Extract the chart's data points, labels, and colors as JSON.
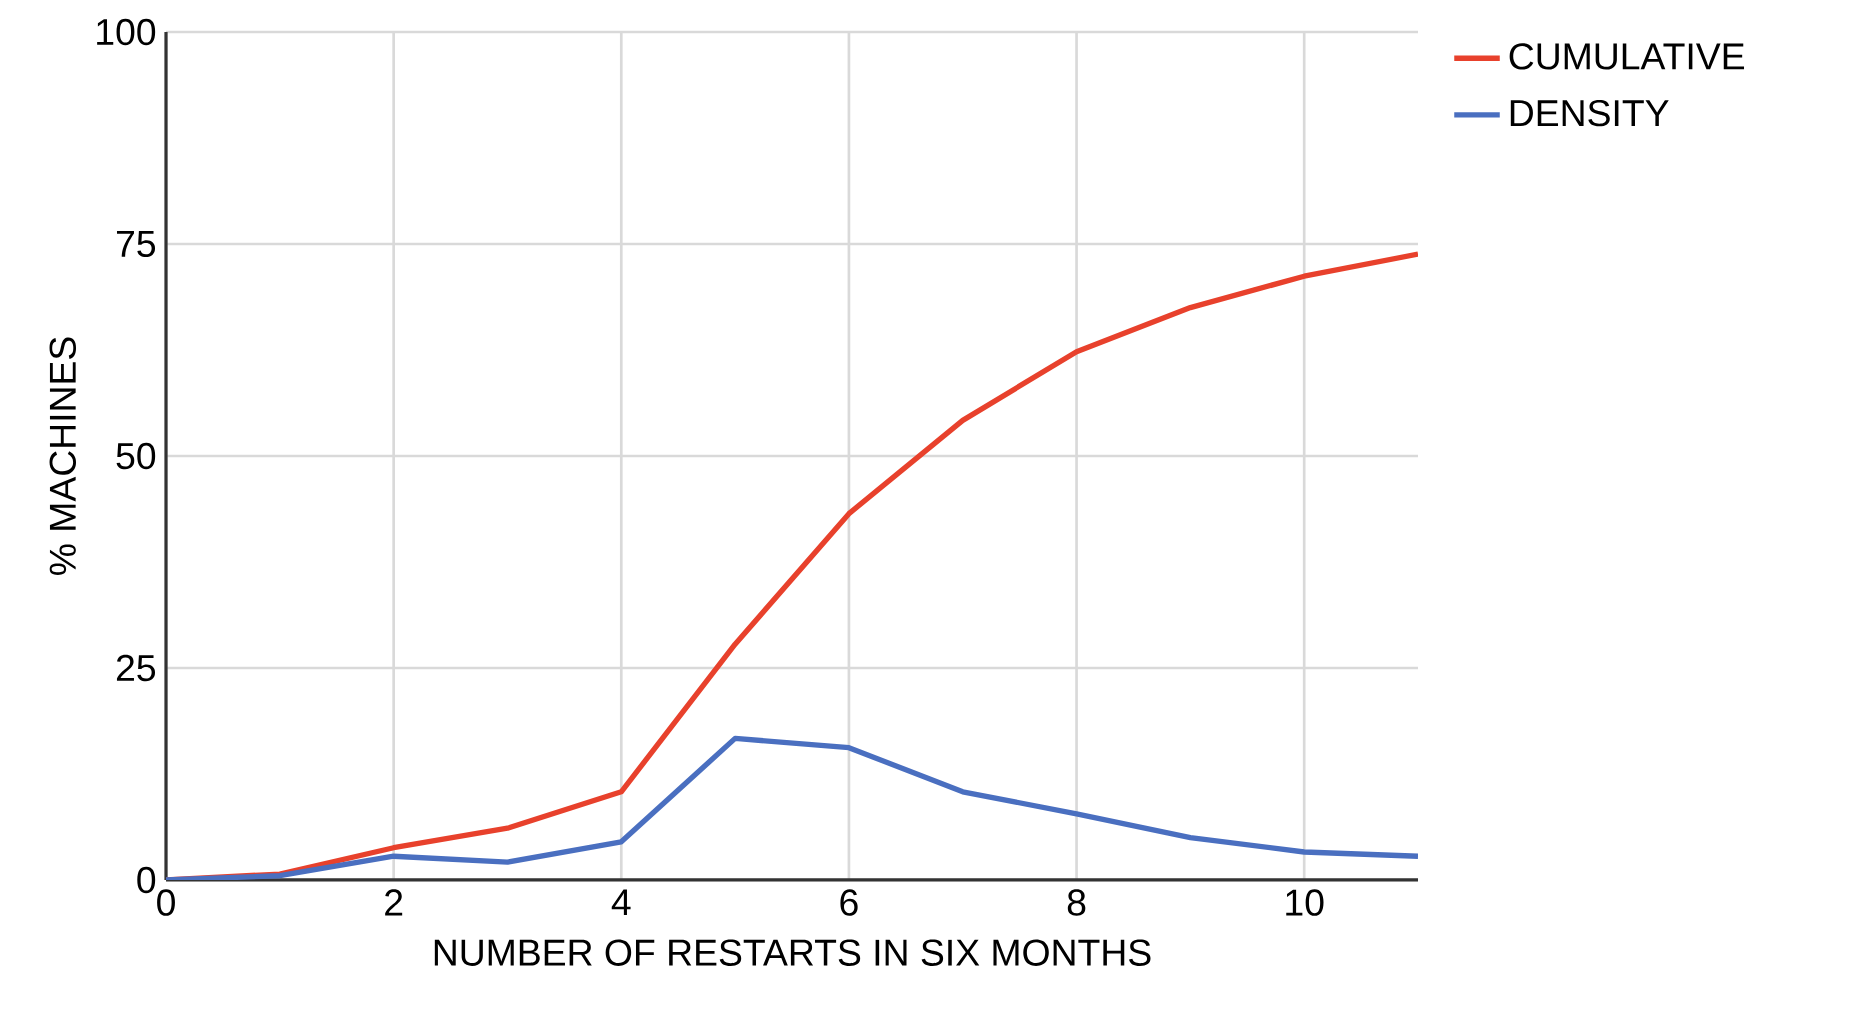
{
  "chart_data": {
    "type": "line",
    "xlabel": "NUMBER OF RESTARTS IN SIX MONTHS",
    "ylabel": "% MACHINES",
    "x": [
      0,
      1,
      2,
      3,
      4,
      5,
      6,
      7,
      8,
      9,
      10,
      11
    ],
    "series": [
      {
        "name": "CUMULATIVE",
        "color": "#e8412c",
        "values": [
          0,
          0.7,
          3.8,
          6.1,
          10.4,
          27.8,
          43.2,
          54.2,
          62.3,
          67.5,
          71.2,
          73.8
        ]
      },
      {
        "name": "DENSITY",
        "color": "#4a6fc0",
        "values": [
          0,
          0.5,
          2.8,
          2.1,
          4.5,
          16.7,
          15.6,
          10.4,
          7.8,
          5.0,
          3.3,
          2.8
        ]
      }
    ],
    "xlim": [
      0,
      11
    ],
    "ylim": [
      0,
      100
    ],
    "xticks": [
      0,
      2,
      4,
      6,
      8,
      10
    ],
    "yticks": [
      0,
      25,
      50,
      75,
      100
    ],
    "grid": true,
    "legend": "right"
  }
}
